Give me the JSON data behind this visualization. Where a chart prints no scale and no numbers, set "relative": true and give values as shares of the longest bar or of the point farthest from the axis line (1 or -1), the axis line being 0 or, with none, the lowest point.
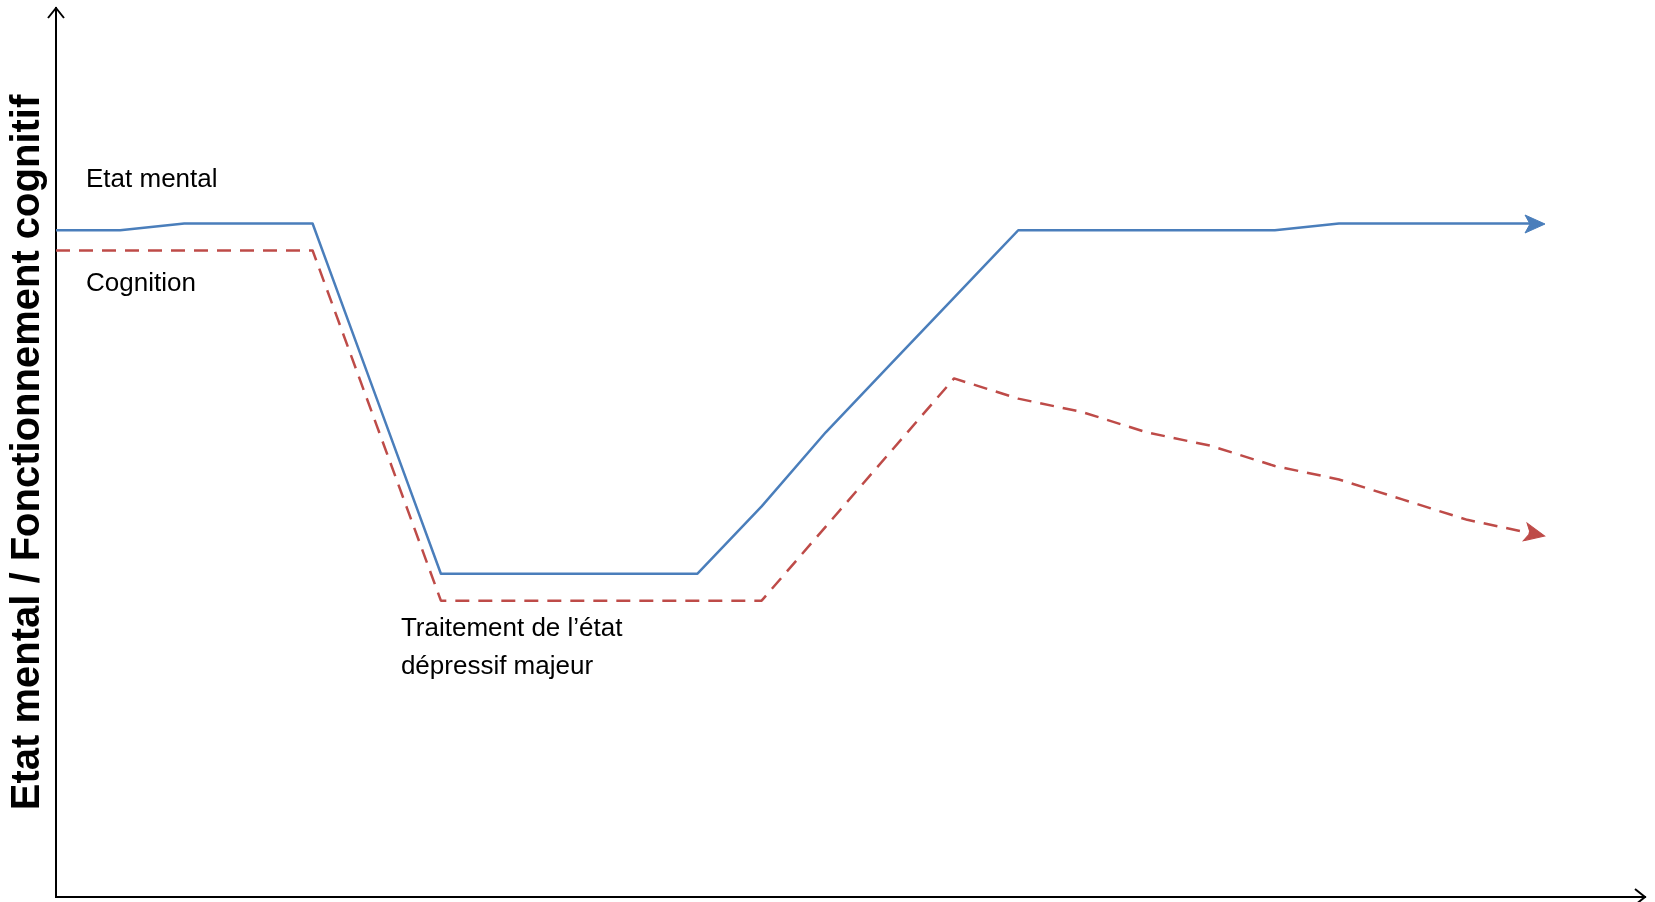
{
  "chart_data": {
    "type": "line",
    "relative": true,
    "ylabel": "Etat mental / Fonctionnement cognitif",
    "grid": false,
    "legend": false,
    "marker": "none",
    "categories": [
      null,
      null,
      null,
      null,
      null,
      null,
      null,
      null,
      null,
      null,
      null,
      null,
      null,
      null,
      null,
      null,
      null,
      null,
      null,
      null,
      null,
      null,
      null,
      null
    ],
    "series": [
      {
        "name": "Etat mental",
        "color": "#4a7ebb",
        "line_style": "solid",
        "values": [
          0.99,
          0.99,
          1,
          1,
          1,
          0.74,
          0.48,
          0.48,
          0.48,
          0.48,
          0.48,
          0.58,
          0.69,
          0.79,
          0.89,
          0.99,
          0.99,
          0.99,
          0.99,
          0.99,
          1,
          1,
          1,
          1
        ]
      },
      {
        "name": "Cognition",
        "color": "#be4b48",
        "line_style": "dashed",
        "values": [
          0.96,
          0.96,
          0.96,
          0.96,
          0.96,
          0.7,
          0.44,
          0.44,
          0.44,
          0.44,
          0.44,
          0.44,
          0.55,
          0.66,
          0.77,
          0.74,
          0.72,
          0.69,
          0.67,
          0.64,
          0.62,
          0.59,
          0.56,
          0.54
        ]
      }
    ],
    "annotations": [
      "Traitement de l’état dépressif majeur"
    ]
  }
}
